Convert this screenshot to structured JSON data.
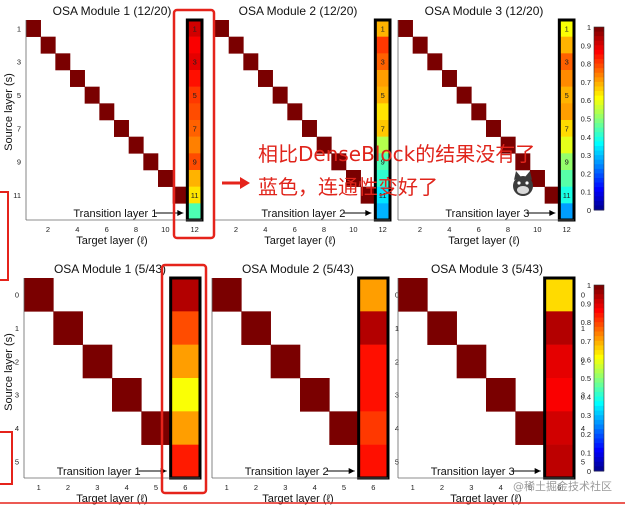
{
  "chart_data": [
    {
      "type": "heatmap",
      "title": "OSA Module 1 (12/20)",
      "xlabel": "Target layer (ℓ)",
      "ylabel": "Source layer (s)",
      "x_ticks": [
        "2",
        "4",
        "6",
        "8",
        "10",
        "12"
      ],
      "y_ticks": [
        "1",
        "3",
        "5",
        "7",
        "9",
        "11"
      ],
      "transition_label": "Transition layer 1",
      "transition_values": [
        0.92,
        0.88,
        0.9,
        0.86,
        0.82,
        0.8,
        0.78,
        0.75,
        0.8,
        0.7,
        0.65,
        0.45
      ]
    },
    {
      "type": "heatmap",
      "title": "OSA Module 2 (12/20)",
      "xlabel": "Target layer (ℓ)",
      "ylabel": "",
      "x_ticks": [
        "2",
        "4",
        "6",
        "8",
        "10",
        "12"
      ],
      "y_ticks": [],
      "transition_label": "Transition layer 2",
      "transition_values": [
        0.7,
        0.82,
        0.78,
        0.72,
        0.7,
        0.65,
        0.68,
        0.55,
        0.45,
        0.42,
        0.35,
        0.3
      ]
    },
    {
      "type": "heatmap",
      "title": "OSA Module 3 (12/20)",
      "xlabel": "Target layer (ℓ)",
      "ylabel": "",
      "x_ticks": [
        "2",
        "4",
        "6",
        "8",
        "10",
        "12"
      ],
      "y_ticks": [],
      "transition_label": "Transition layer 3",
      "transition_values": [
        0.62,
        0.7,
        0.78,
        0.74,
        0.7,
        0.72,
        0.66,
        0.6,
        0.52,
        0.46,
        0.4,
        0.28
      ]
    },
    {
      "type": "heatmap",
      "title": "OSA Module 1 (5/43)",
      "xlabel": "Target layer (ℓ)",
      "ylabel": "Source layer (s)",
      "x_ticks": [
        "1",
        "2",
        "3",
        "4",
        "5",
        "6"
      ],
      "y_ticks": [
        "0",
        "1",
        "2",
        "3",
        "4",
        "5"
      ],
      "transition_label": "Transition layer 1",
      "transition_values": [
        0.95,
        0.8,
        0.72,
        0.62,
        0.72,
        0.85
      ]
    },
    {
      "type": "heatmap",
      "title": "OSA Module 2 (5/43)",
      "xlabel": "Target layer (ℓ)",
      "ylabel": "",
      "x_ticks": [
        "1",
        "2",
        "3",
        "4",
        "5",
        "6"
      ],
      "y_ticks": [],
      "transition_label": "Transition layer 2",
      "transition_values": [
        0.72,
        0.95,
        0.86,
        0.86,
        0.82,
        0.86
      ]
    },
    {
      "type": "heatmap",
      "title": "OSA Module 3 (5/43)",
      "xlabel": "Target layer (ℓ)",
      "ylabel": "",
      "x_ticks": [
        "1",
        "2",
        "3",
        "4",
        "5",
        "6"
      ],
      "y_ticks": [],
      "transition_label": "Transition layer 3",
      "transition_values": [
        0.66,
        0.95,
        0.9,
        0.88,
        0.92,
        0.94
      ]
    }
  ],
  "colorbar": {
    "ticks": [
      "1",
      "0.9",
      "0.8",
      "0.7",
      "0.6",
      "0.5",
      "0.4",
      "0.3",
      "0.2",
      "0.1",
      "0"
    ]
  },
  "annotation": {
    "line1": "相比DenseBlock的结果没有了",
    "line2": "蓝色，连通性变好了"
  },
  "watermark": "@稀土掘金技术社区",
  "colors": {
    "diag": "#7a0000",
    "highlight": "#e5231b",
    "annotation": "#e0241b"
  }
}
